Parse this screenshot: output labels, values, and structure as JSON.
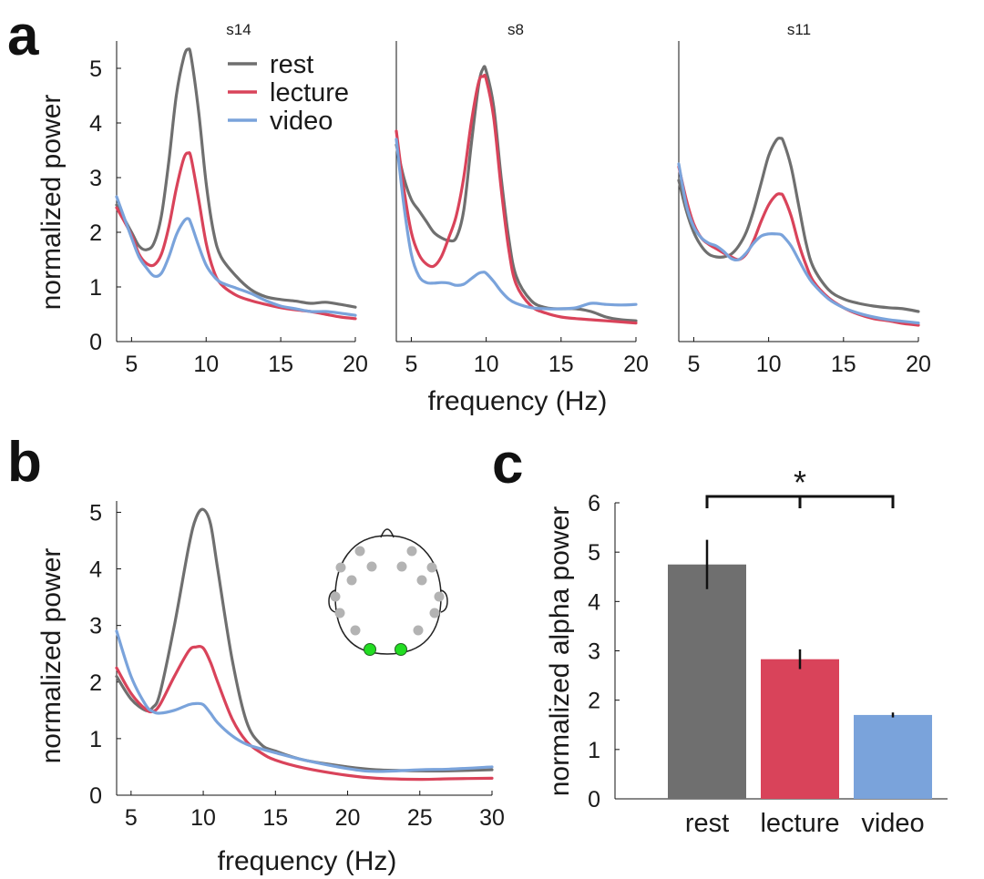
{
  "colors": {
    "rest": "#6f6f6f",
    "lecture": "#d9435a",
    "video": "#7aa3db",
    "electrode_gray": "#b3b3b3",
    "electrode_green": "#22dd22"
  },
  "panel_letters": [
    "a",
    "b",
    "c"
  ],
  "chart_data": [
    {
      "type": "line",
      "panel": "a",
      "subtitle": "s14",
      "ylabel": "normalized power",
      "xlabel": "",
      "xlim": [
        4,
        20
      ],
      "ylim": [
        0,
        5.5
      ],
      "xticks": [
        5,
        10,
        15,
        20
      ],
      "yticks": [
        0,
        1,
        2,
        3,
        4,
        5
      ],
      "legend": {
        "position": "top-right",
        "entries": [
          "rest",
          "lecture",
          "video"
        ]
      },
      "series": [
        {
          "name": "rest",
          "x": [
            4,
            5,
            5.5,
            6,
            6.5,
            7,
            7.5,
            8,
            8.5,
            8.8,
            9,
            9.5,
            10,
            10.5,
            11,
            12,
            13,
            14,
            15,
            16,
            17,
            18,
            19,
            20
          ],
          "y": [
            2.5,
            2.0,
            1.75,
            1.68,
            1.8,
            2.3,
            3.3,
            4.5,
            5.2,
            5.35,
            5.2,
            4.2,
            2.9,
            2.0,
            1.55,
            1.2,
            0.95,
            0.82,
            0.77,
            0.74,
            0.7,
            0.72,
            0.68,
            0.63
          ]
        },
        {
          "name": "lecture",
          "x": [
            4,
            5,
            5.5,
            6,
            6.5,
            7,
            7.5,
            8,
            8.5,
            8.8,
            9,
            9.5,
            10,
            10.5,
            11,
            12,
            13,
            14,
            15,
            16,
            17,
            18,
            19,
            20
          ],
          "y": [
            2.45,
            1.95,
            1.6,
            1.43,
            1.4,
            1.6,
            2.1,
            2.8,
            3.35,
            3.45,
            3.35,
            2.6,
            1.8,
            1.3,
            1.05,
            0.85,
            0.75,
            0.68,
            0.62,
            0.58,
            0.55,
            0.5,
            0.45,
            0.42
          ]
        },
        {
          "name": "video",
          "x": [
            4,
            5,
            5.5,
            6,
            6.5,
            7,
            7.5,
            8,
            8.5,
            8.8,
            9,
            9.5,
            10,
            10.5,
            11,
            12,
            13,
            14,
            15,
            16,
            17,
            18,
            19,
            20
          ],
          "y": [
            2.65,
            1.9,
            1.55,
            1.35,
            1.2,
            1.25,
            1.55,
            1.95,
            2.2,
            2.25,
            2.15,
            1.75,
            1.4,
            1.2,
            1.08,
            0.98,
            0.88,
            0.75,
            0.65,
            0.6,
            0.55,
            0.55,
            0.52,
            0.48
          ]
        }
      ]
    },
    {
      "type": "line",
      "panel": "a",
      "subtitle": "s8",
      "xlabel": "frequency (Hz)",
      "ylabel": "",
      "xlim": [
        4,
        20
      ],
      "ylim": [
        0,
        5.5
      ],
      "xticks": [
        5,
        10,
        15,
        20
      ],
      "yticks": [],
      "series": [
        {
          "name": "rest",
          "x": [
            4,
            4.5,
            5,
            5.5,
            6,
            6.5,
            7,
            7.5,
            8,
            8.5,
            9,
            9.5,
            9.8,
            10,
            10.5,
            11,
            11.5,
            12,
            13,
            14,
            15,
            16,
            17,
            18,
            19,
            20
          ],
          "y": [
            3.6,
            3.0,
            2.6,
            2.4,
            2.2,
            2.0,
            1.9,
            1.85,
            1.9,
            2.4,
            3.6,
            4.7,
            5.0,
            4.95,
            4.3,
            3.0,
            1.9,
            1.2,
            0.75,
            0.62,
            0.6,
            0.6,
            0.55,
            0.45,
            0.4,
            0.38
          ]
        },
        {
          "name": "lecture",
          "x": [
            4,
            4.5,
            5,
            5.5,
            6,
            6.5,
            7,
            7.5,
            8,
            8.5,
            9,
            9.5,
            9.8,
            10,
            10.5,
            11,
            11.5,
            12,
            13,
            14,
            15,
            16,
            17,
            18,
            19,
            20
          ],
          "y": [
            3.85,
            2.8,
            2.0,
            1.6,
            1.42,
            1.38,
            1.55,
            1.9,
            2.3,
            3.0,
            4.0,
            4.75,
            4.85,
            4.8,
            4.1,
            2.8,
            1.7,
            1.05,
            0.65,
            0.52,
            0.45,
            0.42,
            0.4,
            0.38,
            0.36,
            0.34
          ]
        },
        {
          "name": "video",
          "x": [
            4,
            4.5,
            5,
            5.5,
            6,
            6.5,
            7,
            7.5,
            8,
            8.5,
            9,
            9.5,
            9.8,
            10,
            10.5,
            11,
            11.5,
            12,
            13,
            14,
            15,
            16,
            17,
            18,
            19,
            20
          ],
          "y": [
            3.7,
            2.5,
            1.6,
            1.2,
            1.08,
            1.07,
            1.08,
            1.07,
            1.03,
            1.05,
            1.15,
            1.25,
            1.27,
            1.25,
            1.1,
            0.92,
            0.78,
            0.7,
            0.62,
            0.6,
            0.6,
            0.62,
            0.7,
            0.68,
            0.67,
            0.68
          ]
        }
      ]
    },
    {
      "type": "line",
      "panel": "a",
      "subtitle": "s11",
      "xlabel": "",
      "ylabel": "",
      "xlim": [
        4,
        20
      ],
      "ylim": [
        0,
        5.5
      ],
      "xticks": [
        5,
        10,
        15,
        20
      ],
      "yticks": [],
      "series": [
        {
          "name": "rest",
          "x": [
            4,
            4.5,
            5,
            5.5,
            6,
            6.5,
            7,
            7.5,
            8,
            8.5,
            9,
            9.5,
            10,
            10.5,
            10.8,
            11,
            11.5,
            12,
            12.5,
            13,
            14,
            15,
            16,
            17,
            18,
            19,
            20
          ],
          "y": [
            2.95,
            2.4,
            2.0,
            1.75,
            1.6,
            1.55,
            1.55,
            1.6,
            1.75,
            2.0,
            2.4,
            2.9,
            3.4,
            3.68,
            3.72,
            3.65,
            3.2,
            2.5,
            1.8,
            1.35,
            0.95,
            0.78,
            0.7,
            0.65,
            0.62,
            0.6,
            0.55
          ]
        },
        {
          "name": "lecture",
          "x": [
            4,
            4.5,
            5,
            5.5,
            6,
            6.5,
            7,
            7.5,
            8,
            8.5,
            9,
            9.5,
            10,
            10.5,
            10.8,
            11,
            11.5,
            12,
            12.5,
            13,
            14,
            15,
            16,
            17,
            18,
            19,
            20
          ],
          "y": [
            3.2,
            2.6,
            2.15,
            1.9,
            1.78,
            1.7,
            1.62,
            1.55,
            1.5,
            1.6,
            1.85,
            2.2,
            2.5,
            2.68,
            2.7,
            2.65,
            2.3,
            1.8,
            1.4,
            1.1,
            0.8,
            0.62,
            0.5,
            0.42,
            0.38,
            0.33,
            0.3
          ]
        },
        {
          "name": "video",
          "x": [
            4,
            4.5,
            5,
            5.5,
            6,
            6.5,
            7,
            7.5,
            8,
            8.5,
            9,
            9.5,
            10,
            10.5,
            10.8,
            11,
            11.5,
            12,
            12.5,
            13,
            14,
            15,
            16,
            17,
            18,
            19,
            20
          ],
          "y": [
            3.25,
            2.5,
            2.1,
            1.9,
            1.8,
            1.75,
            1.65,
            1.52,
            1.5,
            1.62,
            1.8,
            1.93,
            1.97,
            1.97,
            1.96,
            1.92,
            1.75,
            1.5,
            1.25,
            1.05,
            0.78,
            0.62,
            0.52,
            0.45,
            0.4,
            0.37,
            0.34
          ]
        }
      ]
    },
    {
      "type": "line",
      "panel": "b",
      "xlabel": "frequency (Hz)",
      "ylabel": "normalized power",
      "xlim": [
        4,
        30
      ],
      "ylim": [
        0,
        5.2
      ],
      "xticks": [
        5,
        10,
        15,
        20,
        25,
        30
      ],
      "yticks": [
        0,
        1,
        2,
        3,
        4,
        5
      ],
      "series": [
        {
          "name": "rest",
          "x": [
            4,
            5,
            6,
            6.5,
            7,
            8,
            9,
            9.5,
            10,
            10.5,
            11,
            12,
            13,
            14,
            15,
            17,
            20,
            22,
            25,
            27,
            30
          ],
          "y": [
            2.1,
            1.7,
            1.5,
            1.55,
            1.8,
            3.0,
            4.4,
            4.9,
            5.05,
            4.8,
            4.0,
            2.4,
            1.3,
            0.9,
            0.78,
            0.62,
            0.5,
            0.45,
            0.43,
            0.43,
            0.45
          ]
        },
        {
          "name": "lecture",
          "x": [
            4,
            5,
            6,
            6.5,
            7,
            8,
            9,
            9.5,
            10,
            10.5,
            11,
            12,
            13,
            14,
            15,
            17,
            20,
            22,
            25,
            27,
            30
          ],
          "y": [
            2.25,
            1.8,
            1.52,
            1.48,
            1.6,
            2.1,
            2.55,
            2.62,
            2.6,
            2.35,
            2.0,
            1.35,
            0.95,
            0.75,
            0.62,
            0.48,
            0.35,
            0.3,
            0.28,
            0.29,
            0.3
          ]
        },
        {
          "name": "video",
          "x": [
            4,
            5,
            6,
            6.5,
            7,
            8,
            9,
            9.5,
            10,
            10.5,
            11,
            12,
            13,
            14,
            15,
            17,
            20,
            22,
            25,
            27,
            30
          ],
          "y": [
            2.9,
            2.1,
            1.6,
            1.48,
            1.45,
            1.5,
            1.6,
            1.62,
            1.6,
            1.45,
            1.28,
            1.05,
            0.9,
            0.82,
            0.75,
            0.62,
            0.47,
            0.42,
            0.45,
            0.46,
            0.5
          ]
        }
      ]
    },
    {
      "type": "bar",
      "panel": "c",
      "ylabel": "normalized alpha power",
      "xlabel": "",
      "categories": [
        "rest",
        "lecture",
        "video"
      ],
      "values": [
        4.75,
        2.83,
        1.7
      ],
      "errors": [
        0.5,
        0.2,
        0.05
      ],
      "ylim": [
        0,
        6
      ],
      "yticks": [
        0,
        1,
        2,
        3,
        4,
        5,
        6
      ],
      "significance": {
        "label": "*",
        "between": [
          "rest",
          "video"
        ]
      }
    }
  ]
}
